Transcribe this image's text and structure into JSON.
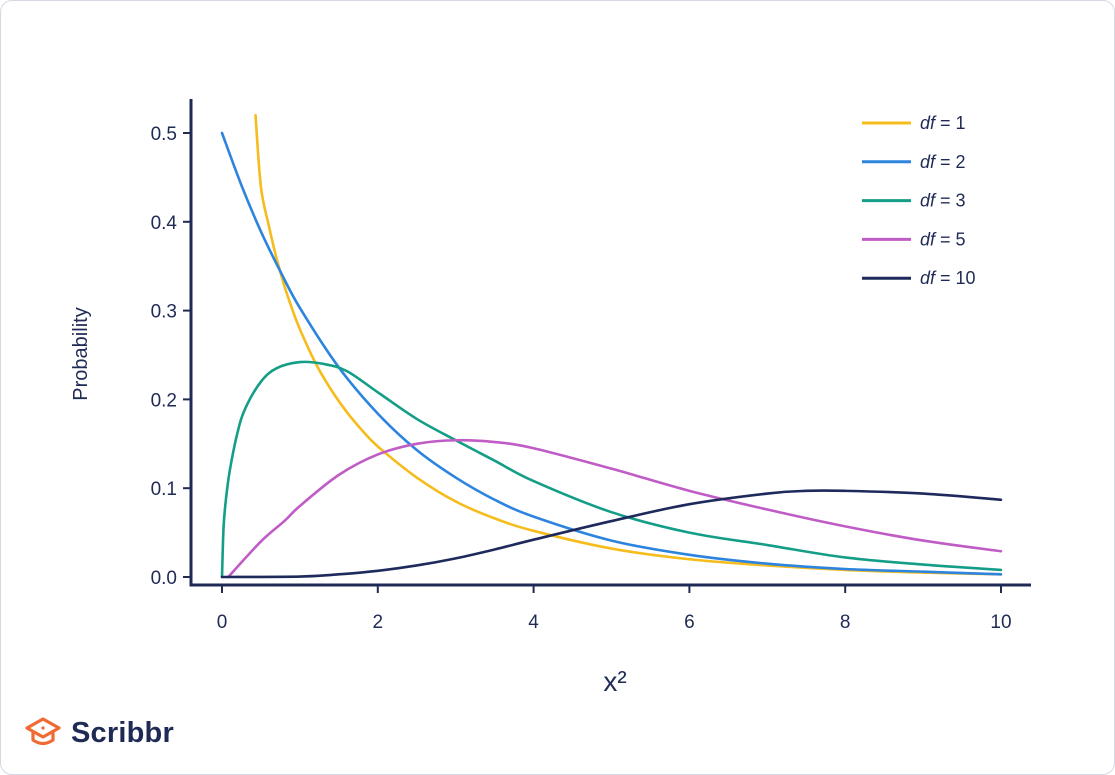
{
  "chart_data": {
    "type": "line",
    "xlabel": "x²",
    "ylabel": "Probability",
    "xlim": [
      -0.4,
      10.4
    ],
    "ylim": [
      0,
      0.54
    ],
    "xticks": [
      0,
      2,
      4,
      6,
      8,
      10
    ],
    "xtick_labels": [
      "0",
      "2",
      "4",
      "6",
      "8",
      "10"
    ],
    "yticks": [
      0.0,
      0.1,
      0.2,
      0.3,
      0.4,
      0.5
    ],
    "ytick_labels": [
      "0.0",
      "0.1",
      "0.2",
      "0.3",
      "0.4",
      "0.5"
    ],
    "legend_position": "top-right",
    "grid": false,
    "series": [
      {
        "label_var": "df",
        "label_rest": " = 1",
        "color": "#f5bc1c",
        "x": [
          0.43,
          0.5,
          0.6,
          0.7,
          0.8,
          0.9,
          1.0,
          1.2,
          1.4,
          1.6,
          1.8,
          2.0,
          2.5,
          3.0,
          3.5,
          4.0,
          5.0,
          6.0,
          7.0,
          8.0,
          9.0,
          10.0
        ],
        "y": [
          0.52,
          0.439,
          0.396,
          0.359,
          0.328,
          0.302,
          0.279,
          0.241,
          0.211,
          0.186,
          0.165,
          0.147,
          0.112,
          0.085,
          0.066,
          0.052,
          0.032,
          0.02,
          0.013,
          0.008,
          0.005,
          0.003
        ]
      },
      {
        "label_var": "df",
        "label_rest": " = 2",
        "color": "#2c84de",
        "x": [
          0,
          0.25,
          0.5,
          0.75,
          1.0,
          1.5,
          2.0,
          2.5,
          3.0,
          3.5,
          4.0,
          5.0,
          6.0,
          7.0,
          8.0,
          9.0,
          10.0
        ],
        "y": [
          0.5,
          0.441,
          0.389,
          0.344,
          0.303,
          0.236,
          0.184,
          0.143,
          0.112,
          0.087,
          0.068,
          0.041,
          0.025,
          0.015,
          0.009,
          0.006,
          0.003
        ]
      },
      {
        "label_var": "df",
        "label_rest": " = 3",
        "color": "#159e87",
        "x": [
          0,
          0.02,
          0.05,
          0.1,
          0.2,
          0.3,
          0.5,
          0.7,
          1.0,
          1.3,
          1.6,
          2.0,
          2.5,
          3.0,
          3.5,
          4.0,
          5.0,
          6.0,
          7.0,
          8.0,
          9.0,
          10.0
        ],
        "y": [
          0,
          0.056,
          0.087,
          0.12,
          0.163,
          0.19,
          0.22,
          0.235,
          0.242,
          0.24,
          0.232,
          0.208,
          0.178,
          0.154,
          0.131,
          0.108,
          0.073,
          0.05,
          0.036,
          0.022,
          0.014,
          0.008
        ]
      },
      {
        "label_var": "df",
        "label_rest": " = 5",
        "color": "#bf5cc5",
        "x": [
          0.08,
          0.5,
          0.8,
          1.0,
          1.5,
          2.0,
          2.5,
          3.0,
          3.5,
          4.0,
          5.0,
          6.0,
          7.0,
          8.0,
          9.0,
          10.0
        ],
        "y": [
          0,
          0.04,
          0.063,
          0.08,
          0.115,
          0.138,
          0.15,
          0.154,
          0.152,
          0.145,
          0.122,
          0.097,
          0.076,
          0.057,
          0.041,
          0.029
        ]
      },
      {
        "label_var": "df",
        "label_rest": " = 10",
        "color": "#1e2a5c",
        "x": [
          0,
          1.0,
          1.5,
          2.0,
          2.5,
          3.0,
          3.5,
          4.0,
          5.0,
          6.0,
          7.0,
          7.5,
          8.0,
          9.0,
          10.0
        ],
        "y": [
          0,
          0.0005,
          0.003,
          0.007,
          0.013,
          0.021,
          0.031,
          0.042,
          0.063,
          0.082,
          0.094,
          0.097,
          0.097,
          0.094,
          0.087
        ]
      }
    ]
  },
  "logo": {
    "text": "Scribbr",
    "color": "#f06a34"
  }
}
